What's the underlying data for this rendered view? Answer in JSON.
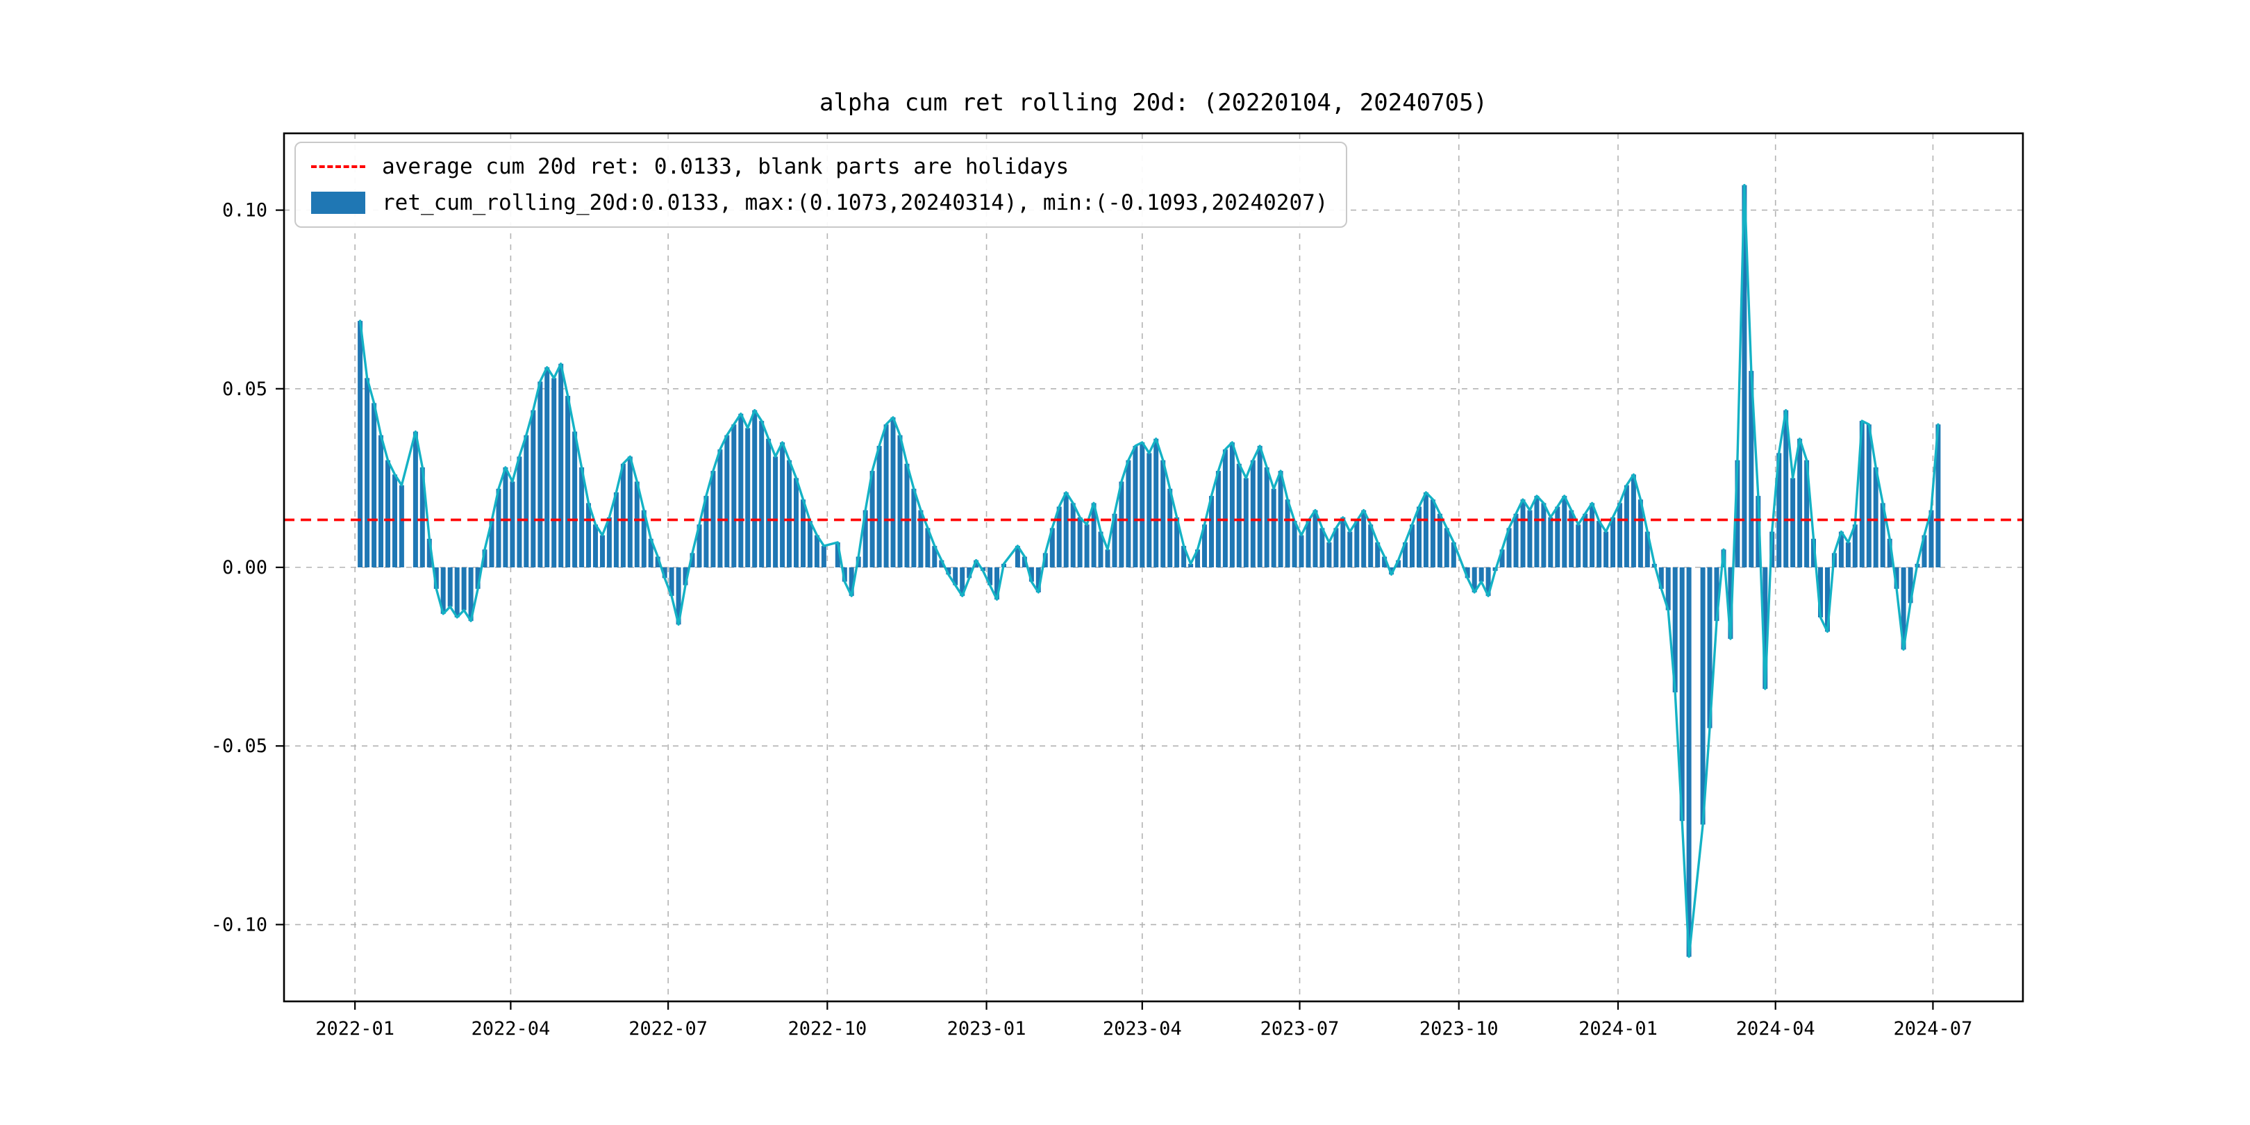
{
  "chart_data": {
    "type": "bar",
    "title": "alpha cum ret rolling 20d: (20220104, 20240705)",
    "legend_position": "upper left",
    "grid": true,
    "legend": [
      {
        "label": "average cum 20d ret: 0.0133, blank parts are holidays",
        "sample": "dashed-red-line",
        "color": "#ff0000"
      },
      {
        "label": "ret_cum_rolling_20d:0.0133, max:(0.1073,20240314), min:(-0.1093,20240207)",
        "sample": "bar-swatch",
        "color": "#1f77b4"
      }
    ],
    "average": 0.0133,
    "max": {
      "value": 0.1073,
      "date": "20240314"
    },
    "min": {
      "value": -0.1093,
      "date": "20240207"
    },
    "colors": {
      "bar": "#1f77b4",
      "line": "#14b2c5",
      "average": "#ff0000",
      "grid": "#b3b3b3",
      "spine": "#000000"
    },
    "ylim": [
      -0.1215,
      0.1215
    ],
    "xlim": [
      "2021-11-21",
      "2024-08-22"
    ],
    "yticks": [
      {
        "value": 0.1,
        "label": "0.10"
      },
      {
        "value": 0.05,
        "label": "0.05"
      },
      {
        "value": 0.0,
        "label": "0.00"
      },
      {
        "value": -0.05,
        "label": "-0.05"
      },
      {
        "value": -0.1,
        "label": "-0.10"
      }
    ],
    "xticks": [
      {
        "month": "2022-01",
        "label": "2022-01"
      },
      {
        "month": "2022-04",
        "label": "2022-04"
      },
      {
        "month": "2022-07",
        "label": "2022-07"
      },
      {
        "month": "2022-10",
        "label": "2022-10"
      },
      {
        "month": "2023-01",
        "label": "2023-01"
      },
      {
        "month": "2023-04",
        "label": "2023-04"
      },
      {
        "month": "2023-07",
        "label": "2023-07"
      },
      {
        "month": "2023-10",
        "label": "2023-10"
      },
      {
        "month": "2024-01",
        "label": "2024-01"
      },
      {
        "month": "2024-04",
        "label": "2024-04"
      },
      {
        "month": "2024-07",
        "label": "2024-07"
      }
    ],
    "series": {
      "name": "ret_cum_rolling_20d",
      "start_date": "2022-01-04",
      "step_days": 4,
      "note": "null entries are holiday gaps (blank parts)",
      "values": [
        0.069,
        0.053,
        0.046,
        0.037,
        0.03,
        0.026,
        0.023,
        null,
        0.038,
        0.028,
        0.008,
        -0.006,
        -0.013,
        -0.011,
        -0.014,
        -0.012,
        -0.015,
        -0.006,
        0.005,
        0.013,
        0.022,
        0.028,
        0.024,
        0.031,
        0.037,
        0.044,
        0.052,
        0.056,
        0.053,
        0.057,
        0.048,
        0.038,
        0.028,
        0.018,
        0.012,
        0.009,
        0.014,
        0.021,
        0.029,
        0.031,
        0.024,
        0.016,
        0.008,
        0.003,
        -0.003,
        -0.008,
        -0.016,
        -0.005,
        0.004,
        0.012,
        0.02,
        0.027,
        0.033,
        0.037,
        0.04,
        0.043,
        0.039,
        0.044,
        0.041,
        0.036,
        0.031,
        0.035,
        0.03,
        0.025,
        0.019,
        0.013,
        0.009,
        0.006,
        null,
        0.007,
        -0.004,
        -0.008,
        0.003,
        0.016,
        0.027,
        0.034,
        0.04,
        0.042,
        0.037,
        0.029,
        0.022,
        0.016,
        0.011,
        0.006,
        0.002,
        -0.002,
        -0.005,
        -0.008,
        -0.003,
        0.002,
        -0.001,
        -0.005,
        -0.009,
        0.001,
        null,
        0.006,
        0.003,
        -0.004,
        -0.007,
        0.004,
        0.011,
        0.017,
        0.021,
        0.018,
        0.014,
        0.012,
        0.018,
        0.01,
        0.005,
        0.015,
        0.024,
        0.03,
        0.034,
        0.035,
        0.032,
        0.036,
        0.03,
        0.022,
        0.014,
        0.006,
        0.001,
        0.005,
        0.012,
        0.02,
        0.027,
        0.033,
        0.035,
        0.029,
        0.025,
        0.03,
        0.034,
        0.028,
        0.022,
        0.027,
        0.019,
        0.013,
        0.009,
        0.013,
        0.016,
        0.011,
        0.007,
        0.011,
        0.014,
        0.01,
        0.013,
        0.016,
        0.012,
        0.007,
        0.003,
        -0.002,
        0.002,
        0.007,
        0.012,
        0.017,
        0.021,
        0.019,
        0.015,
        0.011,
        0.007,
        null,
        -0.003,
        -0.007,
        -0.004,
        -0.008,
        -0.001,
        0.005,
        0.011,
        0.015,
        0.019,
        0.016,
        0.02,
        0.018,
        0.014,
        0.017,
        0.02,
        0.016,
        0.012,
        0.015,
        0.018,
        0.013,
        0.01,
        0.014,
        0.018,
        0.023,
        0.026,
        0.019,
        0.01,
        0.001,
        -0.006,
        -0.012,
        -0.035,
        -0.071,
        -0.109,
        null,
        -0.072,
        -0.045,
        -0.015,
        0.005,
        -0.02,
        0.03,
        0.107,
        0.055,
        0.02,
        -0.034,
        0.01,
        0.032,
        0.044,
        0.025,
        0.036,
        0.03,
        0.008,
        -0.014,
        -0.018,
        0.004,
        0.01,
        0.007,
        0.012,
        0.041,
        0.04,
        0.028,
        0.018,
        0.008,
        -0.006,
        -0.023,
        -0.01,
        0.001,
        0.009,
        0.016,
        0.04
      ]
    }
  }
}
